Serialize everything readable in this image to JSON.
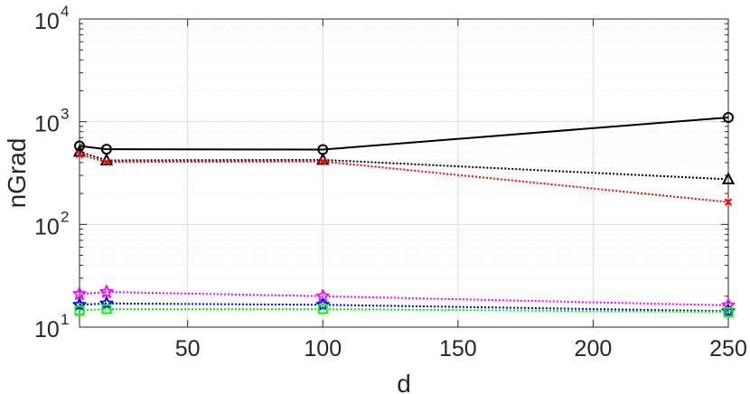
{
  "chart_data": {
    "type": "line",
    "title": "",
    "xlabel": "d",
    "ylabel": "nGrad",
    "xlim": [
      10,
      250
    ],
    "ylim": [
      10,
      10000
    ],
    "yscale": "log",
    "grid": true,
    "x_ticks": [
      {
        "value": 50,
        "label": "50"
      },
      {
        "value": 100,
        "label": "100"
      },
      {
        "value": 150,
        "label": "150"
      },
      {
        "value": 200,
        "label": "200"
      },
      {
        "value": 250,
        "label": "250"
      }
    ],
    "y_ticks": [
      {
        "value": 10,
        "base": "10",
        "exp": "1"
      },
      {
        "value": 100,
        "base": "10",
        "exp": "2"
      },
      {
        "value": 1000,
        "base": "10",
        "exp": "3"
      },
      {
        "value": 10000,
        "base": "10",
        "exp": "4"
      }
    ],
    "x": [
      10,
      20,
      100,
      250
    ],
    "series": [
      {
        "color": "#000000",
        "line": "solid",
        "marker": "circle",
        "values": [
          580,
          540,
          535,
          1100
        ]
      },
      {
        "color": "#000000",
        "line": "dotted",
        "marker": "triangle",
        "values": [
          510,
          420,
          425,
          275
        ]
      },
      {
        "color": "#ff0000",
        "line": "dotted",
        "marker": "x",
        "values": [
          480,
          405,
          410,
          165
        ]
      },
      {
        "color": "#ff00ff",
        "line": "dotted",
        "marker": "star",
        "values": [
          21,
          22,
          20,
          16.3
        ]
      },
      {
        "color": "#0000ff",
        "line": "dotted",
        "marker": "star",
        "values": [
          16.5,
          17,
          16.5,
          14.3
        ]
      },
      {
        "color": "#00ff00",
        "line": "dotted",
        "marker": "square",
        "values": [
          14.5,
          15,
          15,
          14
        ]
      }
    ]
  }
}
